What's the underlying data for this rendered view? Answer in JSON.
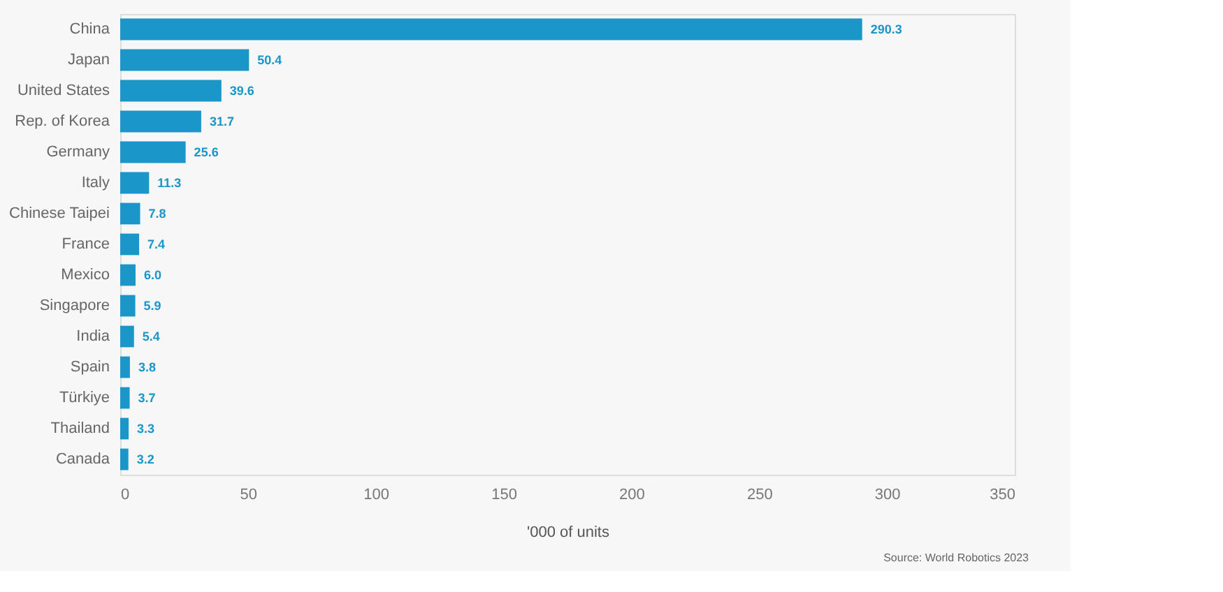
{
  "chart_data": {
    "type": "bar",
    "orientation": "horizontal",
    "xlabel": "'000 of units",
    "categories": [
      "China",
      "Japan",
      "United States",
      "Rep. of Korea",
      "Germany",
      "Italy",
      "Chinese Taipei",
      "France",
      "Mexico",
      "Singapore",
      "India",
      "Spain",
      "Türkiye",
      "Thailand",
      "Canada"
    ],
    "values": [
      290.3,
      50.4,
      39.6,
      31.7,
      25.6,
      11.3,
      7.8,
      7.4,
      6.0,
      5.9,
      5.4,
      3.8,
      3.7,
      3.3,
      3.2
    ],
    "value_labels": [
      "290.3",
      "50.4",
      "39.6",
      "31.7",
      "25.6",
      "11.3",
      "7.8",
      "7.4",
      "6.0",
      "5.9",
      "5.4",
      "3.8",
      "3.7",
      "3.3",
      "3.2"
    ],
    "color": "#1a96c8",
    "xlim": [
      0,
      350
    ],
    "xticks": [
      0,
      50,
      100,
      150,
      200,
      250,
      300,
      350
    ],
    "grid": false,
    "annotations": [
      "Source: World Robotics 2023"
    ]
  }
}
